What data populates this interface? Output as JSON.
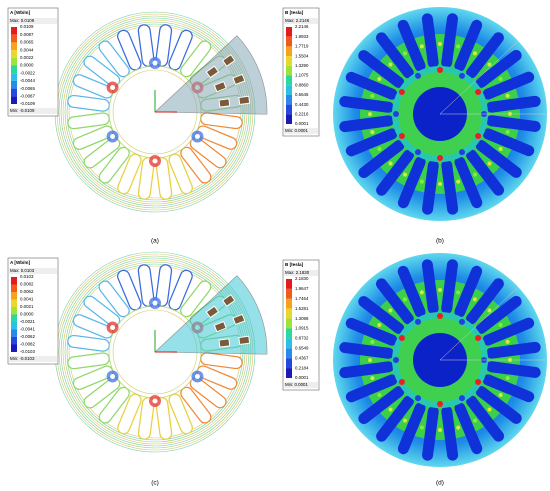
{
  "panels": [
    {
      "label": "(a)",
      "legend": {
        "title": "A [Wb/m]",
        "max": "Max:  0.0109",
        "ticks": [
          "0.0109",
          "0.0087",
          "0.0065",
          "0.0044",
          "0.0022",
          "0.0000",
          "-0.0022",
          "-0.0044",
          "-0.0065",
          "-0.0087",
          "-0.0109"
        ],
        "min": "Min:  -0.0109"
      }
    },
    {
      "label": "(b)",
      "legend": {
        "title": "B [tesla]",
        "max": "Max:  2.2146",
        "ticks": [
          "2.2146",
          "1.9933",
          "1.7719",
          "1.5504",
          "1.3290",
          "1.1075",
          "0.8860",
          "0.6645",
          "0.4430",
          "0.2216",
          "0.0001"
        ],
        "min": "Min:  0.0001"
      }
    },
    {
      "label": "(c)",
      "legend": {
        "title": "A [Wb/m]",
        "max": "Max:  0.0103",
        "ticks": [
          "0.0103",
          "0.0082",
          "0.0062",
          "0.0041",
          "0.0021",
          "0.0000",
          "-0.0021",
          "-0.0041",
          "-0.0062",
          "-0.0082",
          "-0.0103"
        ],
        "min": "Min:  -0.0103"
      }
    },
    {
      "label": "(d)",
      "legend": {
        "title": "B [tesla]",
        "max": "Max:  2.1830",
        "ticks": [
          "2.1830",
          "1.9647",
          "1.7464",
          "1.5281",
          "1.3098",
          "1.0915",
          "0.8732",
          "0.6549",
          "0.4367",
          "0.2184",
          "0.0001"
        ],
        "min": "Min:  0.0001"
      }
    }
  ]
}
